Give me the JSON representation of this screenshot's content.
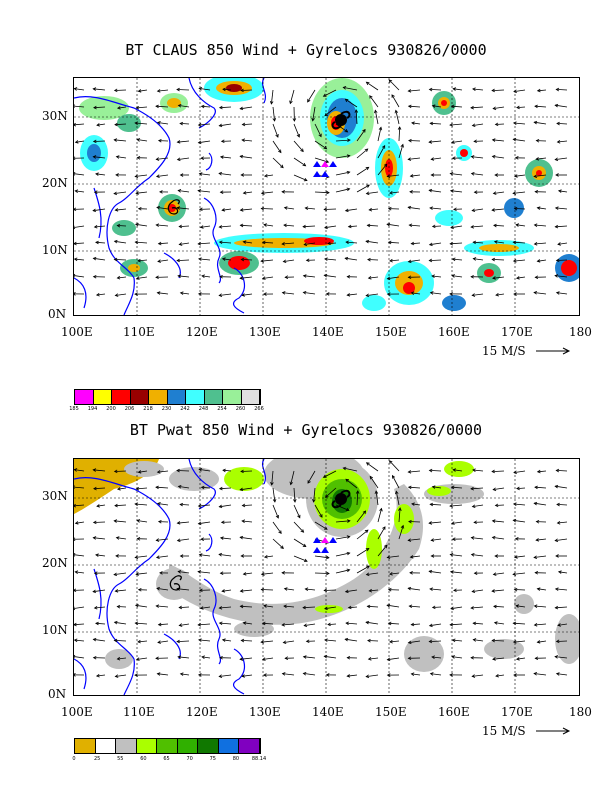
{
  "panels": [
    {
      "title": "BT CLAUS 850 Wind + Gyrelocs 930826/0000",
      "lat_labels": [
        "30N",
        "20N",
        "10N",
        "0N"
      ],
      "lon_labels": [
        "100E",
        "110E",
        "120E",
        "130E",
        "140E",
        "150E",
        "160E",
        "170E",
        "180"
      ],
      "wind_reference": "15 M/S",
      "colorbar": {
        "colors": [
          "#ff00ff",
          "#ffff00",
          "#ff0000",
          "#990000",
          "#f0b000",
          "#1f7fd0",
          "#40ffff",
          "#4fc08f",
          "#99f099",
          "#e0e0e0"
        ],
        "labels": [
          "185",
          "194",
          "200",
          "206",
          "218",
          "230",
          "242",
          "248",
          "254",
          "260",
          "266"
        ]
      }
    },
    {
      "title": "BT Pwat 850 Wind + Gyrelocs 930826/0000",
      "lat_labels": [
        "30N",
        "20N",
        "10N",
        "0N"
      ],
      "lon_labels": [
        "100E",
        "110E",
        "120E",
        "130E",
        "140E",
        "150E",
        "160E",
        "170E",
        "180"
      ],
      "wind_reference": "15 M/S",
      "colorbar": {
        "colors": [
          "#e0b000",
          "#ffffff",
          "#c0c0c0",
          "#aaff00",
          "#50c000",
          "#30b000",
          "#107800",
          "#1070e0",
          "#8000c0"
        ],
        "labels": [
          "0",
          "25",
          "55",
          "60",
          "65",
          "70",
          "75",
          "80",
          "88.14"
        ]
      }
    }
  ]
}
